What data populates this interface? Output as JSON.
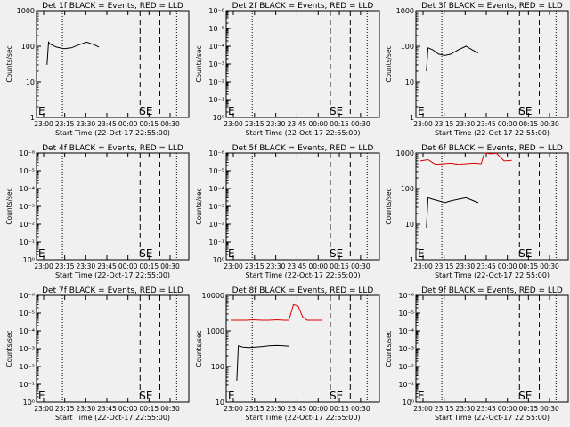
{
  "colors": {
    "background": "#f0f0f0",
    "events": "#000000",
    "lld": "#dd0000",
    "axes": "#000000"
  },
  "chart_data": [
    {
      "type": "line",
      "title": "Det 1f BLACK = Events, RED = LLD",
      "xlabel": "Start Time (22-Oct-17 22:55:00)",
      "ylabel": "Counts/sec",
      "x_ticks": [
        "23:00",
        "23:15",
        "23:30",
        "23:45",
        "00:00",
        "00:15",
        "00:30"
      ],
      "y_ticks": [
        "1",
        "10",
        "100",
        "1000"
      ],
      "y_scale": "log",
      "ylim": [
        1,
        1000
      ],
      "annotations": [
        "E",
        "SE"
      ],
      "series": [
        {
          "color": "black",
          "x": [
            0.04,
            0.05,
            0.06,
            0.1,
            0.15,
            0.2,
            0.25,
            0.3,
            0.35,
            0.38
          ],
          "values": [
            30,
            130,
            115,
            95,
            85,
            90,
            110,
            130,
            110,
            95
          ]
        }
      ]
    },
    {
      "type": "line",
      "title": "Det 2f BLACK = Events, RED = LLD",
      "xlabel": "Start Time (22-Oct-17 22:55:00)",
      "ylabel": "Counts/sec",
      "x_ticks": [
        "23:00",
        "23:15",
        "23:30",
        "23:45",
        "00:00",
        "00:15",
        "00:30"
      ],
      "y_ticks": [
        "10⁰",
        "10⁻¹",
        "10⁻²",
        "10⁻³",
        "10⁻⁴",
        "10⁻⁵",
        "10⁻⁶"
      ],
      "y_scale": "log",
      "annotations": [
        "E",
        "SE"
      ],
      "series": []
    },
    {
      "type": "line",
      "title": "Det 3f BLACK = Events, RED = LLD",
      "xlabel": "Start Time (22-Oct-17 22:55:00)",
      "ylabel": "Counts/sec",
      "x_ticks": [
        "23:00",
        "23:15",
        "23:30",
        "23:45",
        "00:00",
        "00:15",
        "00:30"
      ],
      "y_ticks": [
        "1",
        "10",
        "100",
        "1000"
      ],
      "y_scale": "log",
      "ylim": [
        1,
        1000
      ],
      "annotations": [
        "E",
        "SE"
      ],
      "series": [
        {
          "color": "black",
          "x": [
            0.04,
            0.05,
            0.08,
            0.12,
            0.16,
            0.2,
            0.25,
            0.3,
            0.35,
            0.38
          ],
          "values": [
            20,
            90,
            80,
            60,
            55,
            60,
            80,
            100,
            75,
            65
          ]
        }
      ]
    },
    {
      "type": "line",
      "title": "Det 4f BLACK = Events, RED = LLD",
      "xlabel": "Start Time (22-Oct-17 22:55:00)",
      "ylabel": "Counts/sec",
      "x_ticks": [
        "23:00",
        "23:15",
        "23:30",
        "23:45",
        "00:00",
        "00:15",
        "00:30"
      ],
      "y_ticks": [
        "10⁰",
        "10⁻¹",
        "10⁻²",
        "10⁻³",
        "10⁻⁴",
        "10⁻⁵",
        "10⁻⁶"
      ],
      "y_scale": "log",
      "annotations": [
        "E",
        "SE"
      ],
      "series": []
    },
    {
      "type": "line",
      "title": "Det 5f BLACK = Events, RED = LLD",
      "xlabel": "Start Time (22-Oct-17 22:55:00)",
      "ylabel": "Counts/sec",
      "x_ticks": [
        "23:00",
        "23:15",
        "23:30",
        "23:45",
        "00:00",
        "00:15",
        "00:30"
      ],
      "y_ticks": [
        "10⁰",
        "10⁻¹",
        "10⁻²",
        "10⁻³",
        "10⁻⁴",
        "10⁻⁵",
        "10⁻⁶"
      ],
      "y_scale": "log",
      "annotations": [
        "E",
        "SE"
      ],
      "series": []
    },
    {
      "type": "line",
      "title": "Det 6f BLACK = Events, RED = LLD",
      "xlabel": "Start Time (22-Oct-17 22:55:00)",
      "ylabel": "Counts/sec",
      "x_ticks": [
        "23:00",
        "23:15",
        "23:30",
        "23:45",
        "00:00",
        "00:15",
        "00:30"
      ],
      "y_ticks": [
        "1",
        "10",
        "100",
        "1000"
      ],
      "y_scale": "log",
      "ylim": [
        1,
        1000
      ],
      "annotations": [
        "E",
        "SE"
      ],
      "series": [
        {
          "color": "red",
          "x": [
            0.0,
            0.05,
            0.1,
            0.15,
            0.2,
            0.25,
            0.3,
            0.35,
            0.4,
            0.42,
            0.46,
            0.5,
            0.55,
            0.6
          ],
          "values": [
            600,
            650,
            480,
            500,
            520,
            480,
            500,
            520,
            500,
            1000,
            950,
            980,
            600,
            620
          ]
        },
        {
          "color": "black",
          "x": [
            0.04,
            0.05,
            0.08,
            0.12,
            0.16,
            0.2,
            0.25,
            0.3,
            0.35,
            0.38
          ],
          "values": [
            8,
            55,
            50,
            45,
            40,
            45,
            50,
            55,
            45,
            40
          ]
        }
      ]
    },
    {
      "type": "line",
      "title": "Det 7f BLACK = Events, RED = LLD",
      "xlabel": "Start Time (22-Oct-17 22:55:00)",
      "ylabel": "Counts/sec",
      "x_ticks": [
        "23:00",
        "23:15",
        "23:30",
        "23:45",
        "00:00",
        "00:15",
        "00:30"
      ],
      "y_ticks": [
        "10⁰",
        "10⁻¹",
        "10⁻²",
        "10⁻³",
        "10⁻⁴",
        "10⁻⁵",
        "10⁻⁶"
      ],
      "y_scale": "log",
      "annotations": [
        "E",
        "SE"
      ],
      "series": []
    },
    {
      "type": "line",
      "title": "Det 8f BLACK = Events, RED = LLD",
      "xlabel": "Start Time (22-Oct-17 22:55:00)",
      "ylabel": "Counts/sec",
      "x_ticks": [
        "23:00",
        "23:15",
        "23:30",
        "23:45",
        "00:00",
        "00:15",
        "00:30"
      ],
      "y_ticks": [
        "10",
        "100",
        "1000",
        "10000"
      ],
      "y_scale": "log",
      "ylim": [
        10,
        10000
      ],
      "annotations": [
        "E",
        "SE"
      ],
      "series": [
        {
          "color": "red",
          "x": [
            0.0,
            0.05,
            0.1,
            0.15,
            0.2,
            0.25,
            0.3,
            0.35,
            0.38,
            0.41,
            0.44,
            0.47,
            0.5,
            0.55,
            0.6
          ],
          "values": [
            2000,
            2000,
            2000,
            2050,
            2000,
            2000,
            2050,
            2000,
            2000,
            5500,
            5000,
            2500,
            2000,
            2000,
            2000
          ]
        },
        {
          "color": "black",
          "x": [
            0.04,
            0.05,
            0.08,
            0.12,
            0.16,
            0.2,
            0.25,
            0.3,
            0.35,
            0.38
          ],
          "values": [
            40,
            380,
            350,
            340,
            350,
            360,
            380,
            390,
            380,
            370
          ]
        }
      ]
    },
    {
      "type": "line",
      "title": "Det 9f BLACK = Events, RED = LLD",
      "xlabel": "Start Time (22-Oct-17 22:55:00)",
      "ylabel": "Counts/sec",
      "x_ticks": [
        "23:00",
        "23:15",
        "23:30",
        "23:45",
        "00:00",
        "00:15",
        "00:30"
      ],
      "y_ticks": [
        "10⁰",
        "10⁻¹",
        "10⁻²",
        "10⁻³",
        "10⁻⁴",
        "10⁻⁵",
        "10⁻⁶"
      ],
      "y_scale": "log",
      "annotations": [
        "E",
        "SE"
      ],
      "series": []
    }
  ]
}
